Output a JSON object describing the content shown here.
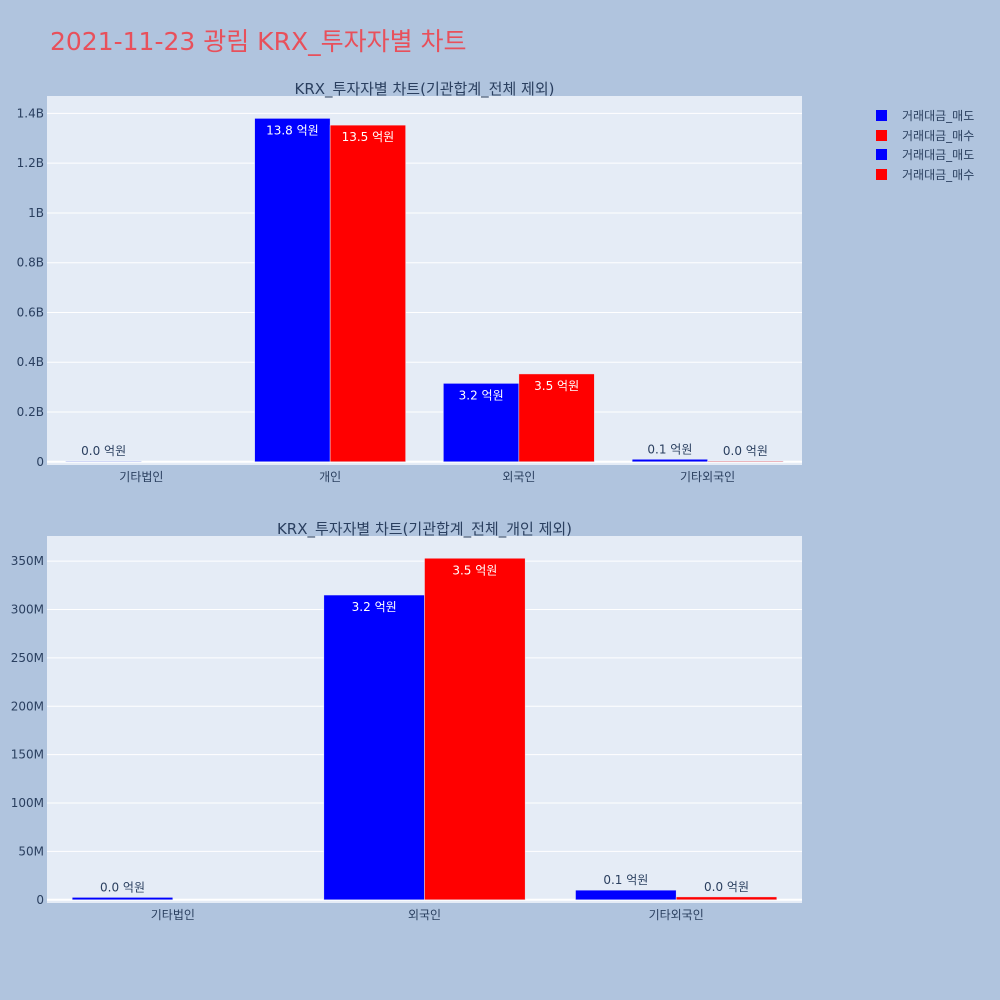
{
  "page": {
    "title": "2021-11-23 광림 KRX_투자자별 차트",
    "title_color": "#e8505b",
    "background": "#b0c4de",
    "plot_background": "#e5ecf6"
  },
  "legend": [
    {
      "label": "거래대금_매도",
      "color": "#0000ff"
    },
    {
      "label": "거래대금_매수",
      "color": "#ff0000"
    },
    {
      "label": "거래대금_매도",
      "color": "#0000ff"
    },
    {
      "label": "거래대금_매수",
      "color": "#ff0000"
    }
  ],
  "chart_data": [
    {
      "type": "bar",
      "title": "KRX_투자자별 차트(기관합계_전체 제외)",
      "categories": [
        "기타법인",
        "개인",
        "외국인",
        "기타외국인"
      ],
      "series": [
        {
          "name": "거래대금_매도",
          "color": "#0000ff",
          "values": [
            2500000,
            1380000000,
            315000000,
            10000000
          ],
          "labels": [
            "0.0 억원",
            "13.8 억원",
            "3.2 억원",
            "0.1 억원"
          ]
        },
        {
          "name": "거래대금_매수",
          "color": "#ff0000",
          "values": [
            0,
            1353000000,
            353000000,
            3000000
          ],
          "labels": [
            "",
            "13.5 억원",
            "3.5 억원",
            "0.0 억원"
          ]
        }
      ],
      "yticks": [
        {
          "value": 0,
          "label": "0"
        },
        {
          "value": 200000000,
          "label": "0.2B"
        },
        {
          "value": 400000000,
          "label": "0.4B"
        },
        {
          "value": 600000000,
          "label": "0.6B"
        },
        {
          "value": 800000000,
          "label": "0.8B"
        },
        {
          "value": 1000000000,
          "label": "1B"
        },
        {
          "value": 1200000000,
          "label": "1.2B"
        },
        {
          "value": 1400000000,
          "label": "1.4B"
        }
      ],
      "ylim": [
        -13000000,
        1470000000
      ],
      "grid": true
    },
    {
      "type": "bar",
      "title": "KRX_투자자별 차트(기관합계_전체_개인 제외)",
      "categories": [
        "기타법인",
        "외국인",
        "기타외국인"
      ],
      "series": [
        {
          "name": "거래대금_매도",
          "color": "#0000ff",
          "values": [
            2500000,
            315000000,
            10000000
          ],
          "labels": [
            "0.0 억원",
            "3.2 억원",
            "0.1 억원"
          ]
        },
        {
          "name": "거래대금_매수",
          "color": "#ff0000",
          "values": [
            0,
            353000000,
            3000000
          ],
          "labels": [
            "",
            "3.5 억원",
            "0.0 억원"
          ]
        }
      ],
      "yticks": [
        {
          "value": 0,
          "label": "0"
        },
        {
          "value": 50000000,
          "label": "50M"
        },
        {
          "value": 100000000,
          "label": "100M"
        },
        {
          "value": 150000000,
          "label": "150M"
        },
        {
          "value": 200000000,
          "label": "200M"
        },
        {
          "value": 250000000,
          "label": "250M"
        },
        {
          "value": 300000000,
          "label": "300M"
        },
        {
          "value": 350000000,
          "label": "350M"
        }
      ],
      "ylim": [
        -3300000,
        376000000
      ],
      "grid": true
    }
  ]
}
